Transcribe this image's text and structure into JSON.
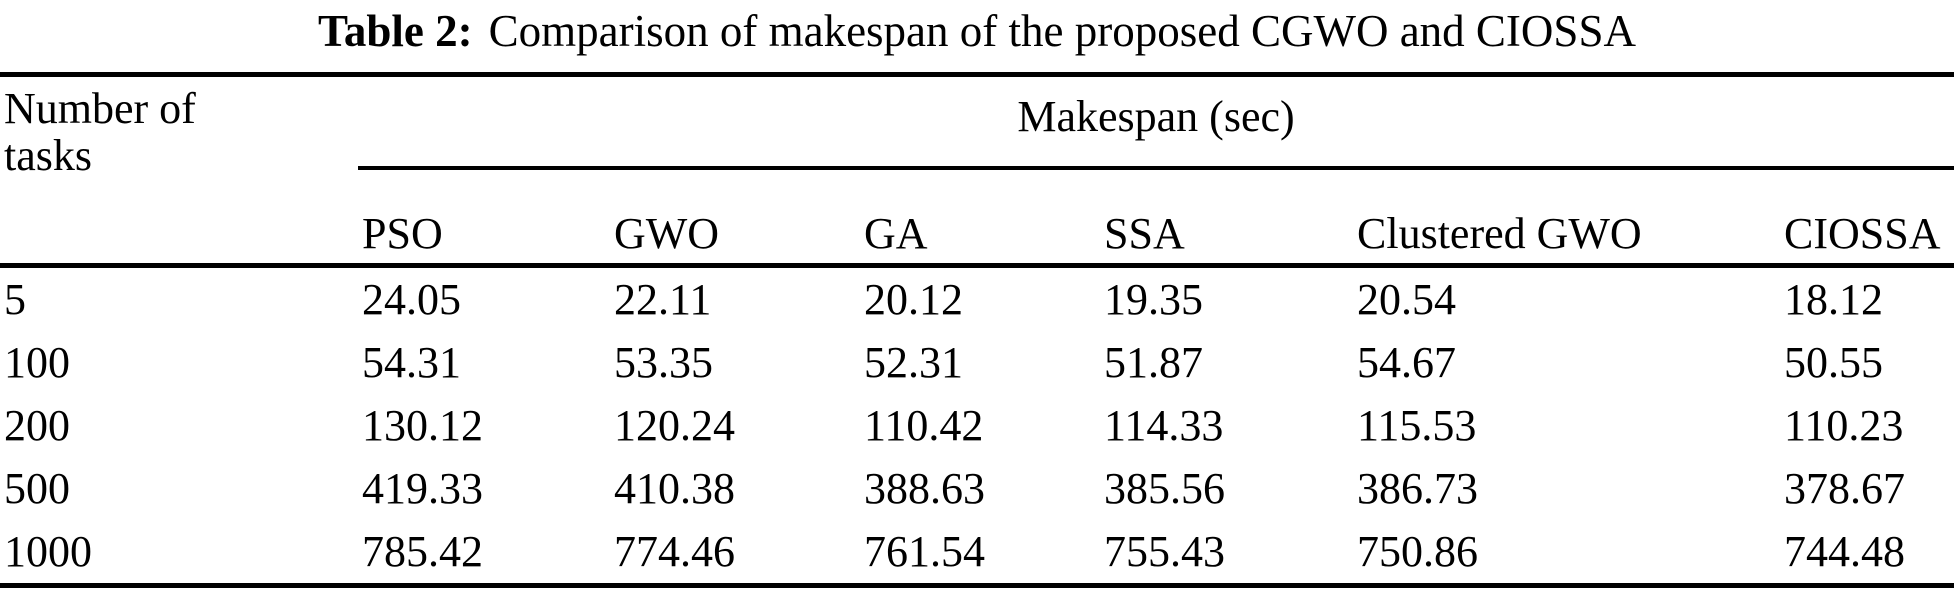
{
  "title": {
    "label": "Table 2:",
    "text": "Comparison of makespan of the proposed CGWO and CIOSSA"
  },
  "table": {
    "row_header": "Number of tasks",
    "group_header": "Makespan (sec)",
    "columns": [
      "PSO",
      "GWO",
      "GA",
      "SSA",
      "Clustered GWO",
      "CIOSSA"
    ],
    "rows": [
      {
        "tasks": "5",
        "values": [
          "24.05",
          "22.11",
          "20.12",
          "19.35",
          "20.54",
          "18.12"
        ]
      },
      {
        "tasks": "100",
        "values": [
          "54.31",
          "53.35",
          "52.31",
          "51.87",
          "54.67",
          "50.55"
        ]
      },
      {
        "tasks": "200",
        "values": [
          "130.12",
          "120.24",
          "110.42",
          "114.33",
          "115.53",
          "110.23"
        ]
      },
      {
        "tasks": "500",
        "values": [
          "419.33",
          "410.38",
          "388.63",
          "385.56",
          "386.73",
          "378.67"
        ]
      },
      {
        "tasks": "1000",
        "values": [
          "785.42",
          "774.46",
          "761.54",
          "755.43",
          "750.86",
          "744.48"
        ]
      }
    ],
    "text_color": "#000000",
    "rule_color": "#000000"
  }
}
